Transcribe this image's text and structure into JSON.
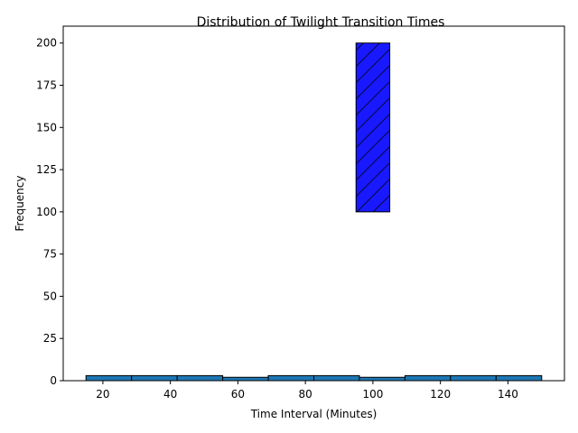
{
  "chart_data": {
    "type": "bar",
    "title": "Distribution of Twilight Transition Times",
    "xlabel": "Time Interval (Minutes)",
    "ylabel": "Frequency",
    "xlim": [
      8.25,
      156.75
    ],
    "ylim": [
      0,
      210
    ],
    "xticks": [
      20,
      40,
      60,
      80,
      100,
      120,
      140
    ],
    "yticks": [
      0,
      25,
      50,
      75,
      100,
      125,
      150,
      175,
      200
    ],
    "grid": false,
    "series": [
      {
        "kind": "histogram",
        "color": "#1f77b4",
        "edgecolor": "#000000",
        "bin_edges": [
          15,
          28.5,
          42,
          55.5,
          69,
          82.5,
          96,
          109.5,
          123,
          136.5,
          150
        ],
        "counts": [
          3,
          3,
          3,
          2,
          3,
          3,
          2,
          3,
          3,
          3
        ]
      },
      {
        "kind": "highlight",
        "color": "#0000ff",
        "edgecolor": "#000000",
        "hatch": "/",
        "x_range": [
          95,
          105
        ],
        "y_range": [
          100,
          200
        ]
      }
    ]
  }
}
